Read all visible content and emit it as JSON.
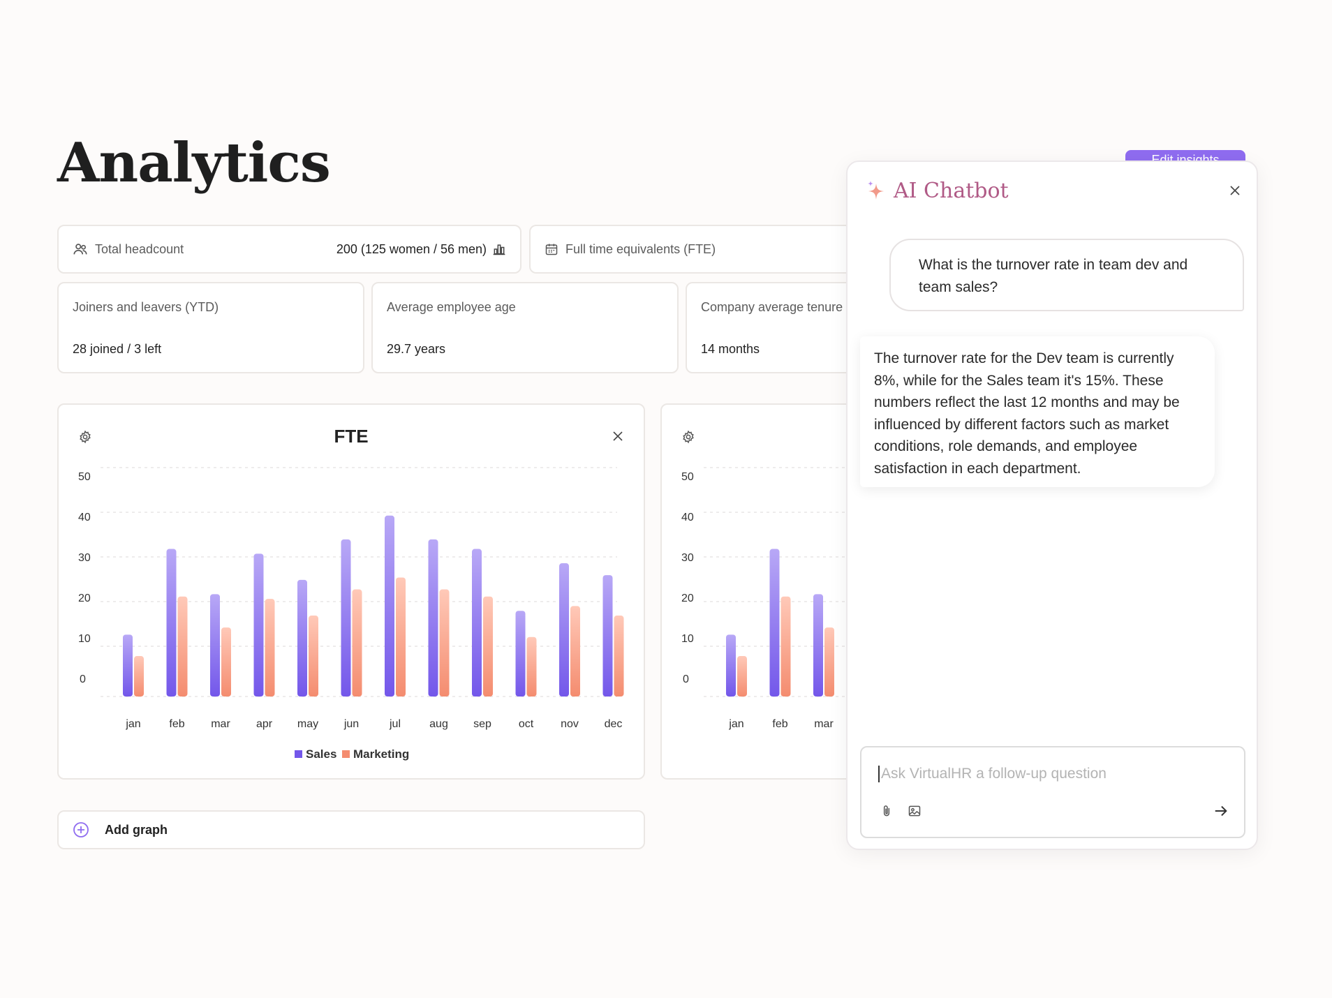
{
  "page": {
    "title": "Analytics",
    "edit_button": "Edit insights"
  },
  "headcount": {
    "label": "Total headcount",
    "value": "200 (125 women / 56 men)"
  },
  "fte_summary": {
    "label": "Full time equivalents (FTE)"
  },
  "stats": [
    {
      "label": "Joiners and leavers (YTD)",
      "value": "28 joined / 3 left"
    },
    {
      "label": "Average employee age",
      "value": "29.7 years"
    },
    {
      "label": "Company average tenure",
      "value": "14 months"
    }
  ],
  "colors": {
    "sales": "#7357ea",
    "marketing": "#f48c6f",
    "accent": "#8f6cf0",
    "chat_title": "#b05a86"
  },
  "chart_data": [
    {
      "type": "bar",
      "title": "FTE",
      "categories": [
        "jan",
        "feb",
        "mar",
        "apr",
        "may",
        "jun",
        "jul",
        "aug",
        "sep",
        "oct",
        "nov",
        "dec"
      ],
      "series": [
        {
          "name": "Sales",
          "values": [
            13,
            31,
            21.5,
            30,
            24.5,
            33,
            38,
            33,
            31,
            18,
            28,
            25.5
          ]
        },
        {
          "name": "Marketing",
          "values": [
            8.5,
            21,
            14.5,
            20.5,
            17,
            22.5,
            25,
            22.5,
            21,
            12.5,
            19,
            17
          ]
        }
      ],
      "yticks": [
        0,
        10,
        20,
        30,
        40,
        50
      ],
      "ylim": [
        0,
        50
      ],
      "legend": "bottom-center",
      "grid": true
    },
    {
      "type": "bar",
      "title": "",
      "categories": [
        "jan",
        "feb",
        "mar"
      ],
      "series": [
        {
          "name": "Sales",
          "values": [
            13,
            31,
            21.5
          ]
        },
        {
          "name": "Marketing",
          "values": [
            8.5,
            21,
            14.5
          ]
        }
      ],
      "yticks": [
        0,
        10,
        20,
        30,
        40,
        50
      ],
      "ylim": [
        0,
        50
      ],
      "grid": true
    }
  ],
  "add_graph": {
    "label": "Add graph"
  },
  "chat": {
    "title": "AI Chatbot",
    "user_message": "What is the turnover rate in team dev and team sales?",
    "bot_message": "The turnover rate for the Dev team is currently 8%, while for the Sales team it's 15%. These numbers reflect the last 12 months and may be influenced by different factors such as market conditions, role demands, and employee satisfaction in each department.",
    "input_placeholder": "Ask VirtualHR a follow-up question",
    "input_value": ""
  }
}
